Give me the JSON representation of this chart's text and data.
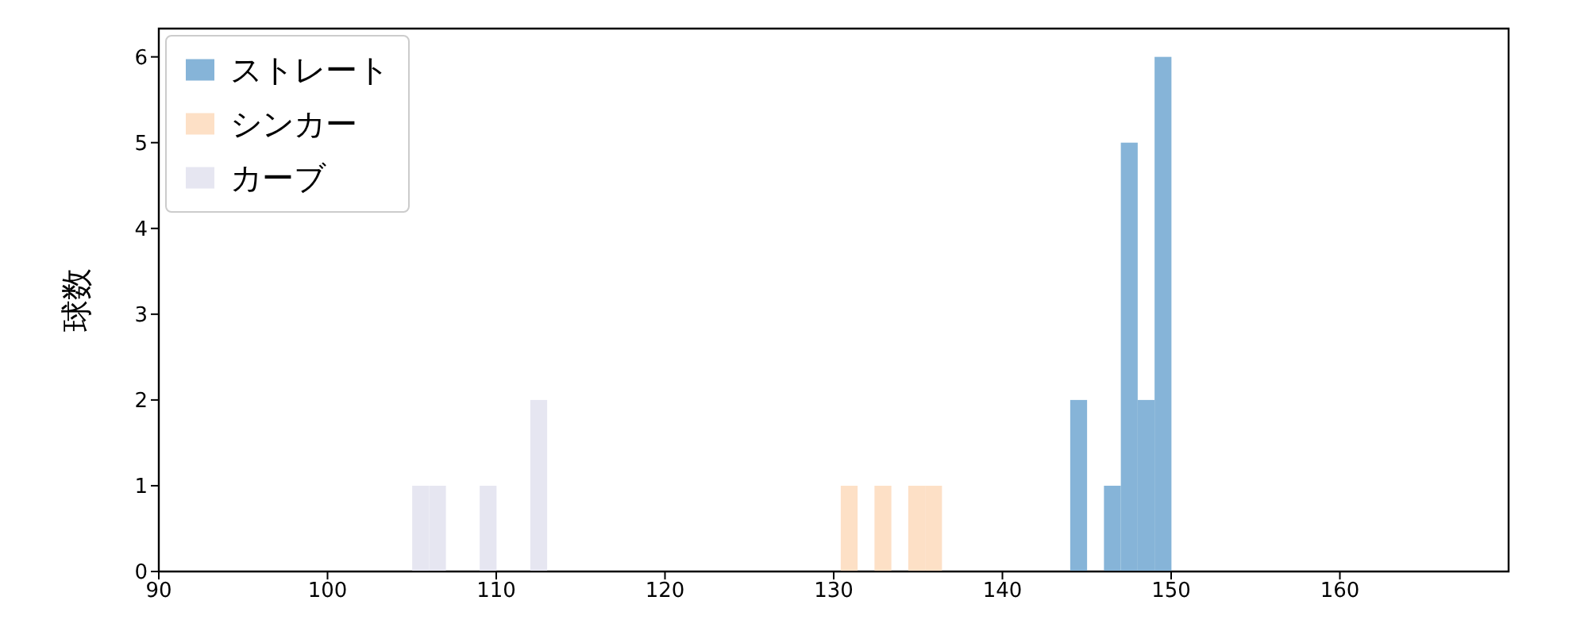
{
  "chart_data": {
    "type": "bar",
    "ylabel": "球数",
    "xlim": [
      90,
      170
    ],
    "xticks": [
      90,
      100,
      110,
      120,
      130,
      140,
      150,
      160
    ],
    "ylim": [
      0,
      6.33
    ],
    "yticks": [
      0,
      1,
      2,
      3,
      4,
      5,
      6
    ],
    "legend": "top left",
    "grid": false,
    "series": [
      {
        "name": "ストレート",
        "color": "#86b4d8",
        "x": [
          144.5,
          145.5,
          146.5,
          147.5,
          148.5,
          149.5
        ],
        "values": [
          2,
          0,
          1,
          5,
          2,
          6
        ]
      },
      {
        "name": "シンカー",
        "color": "#fde0c6",
        "x": [
          130.9,
          131.9,
          132.9,
          133.9,
          134.9,
          135.9
        ],
        "values": [
          1,
          0,
          1,
          0,
          1,
          1
        ]
      },
      {
        "name": "カーブ",
        "color": "#e6e6f1",
        "x": [
          105.5,
          106.5,
          107.5,
          108.5,
          109.5,
          110.5,
          111.5,
          112.5
        ],
        "values": [
          1,
          1,
          0,
          0,
          1,
          0,
          0,
          2
        ]
      }
    ]
  }
}
